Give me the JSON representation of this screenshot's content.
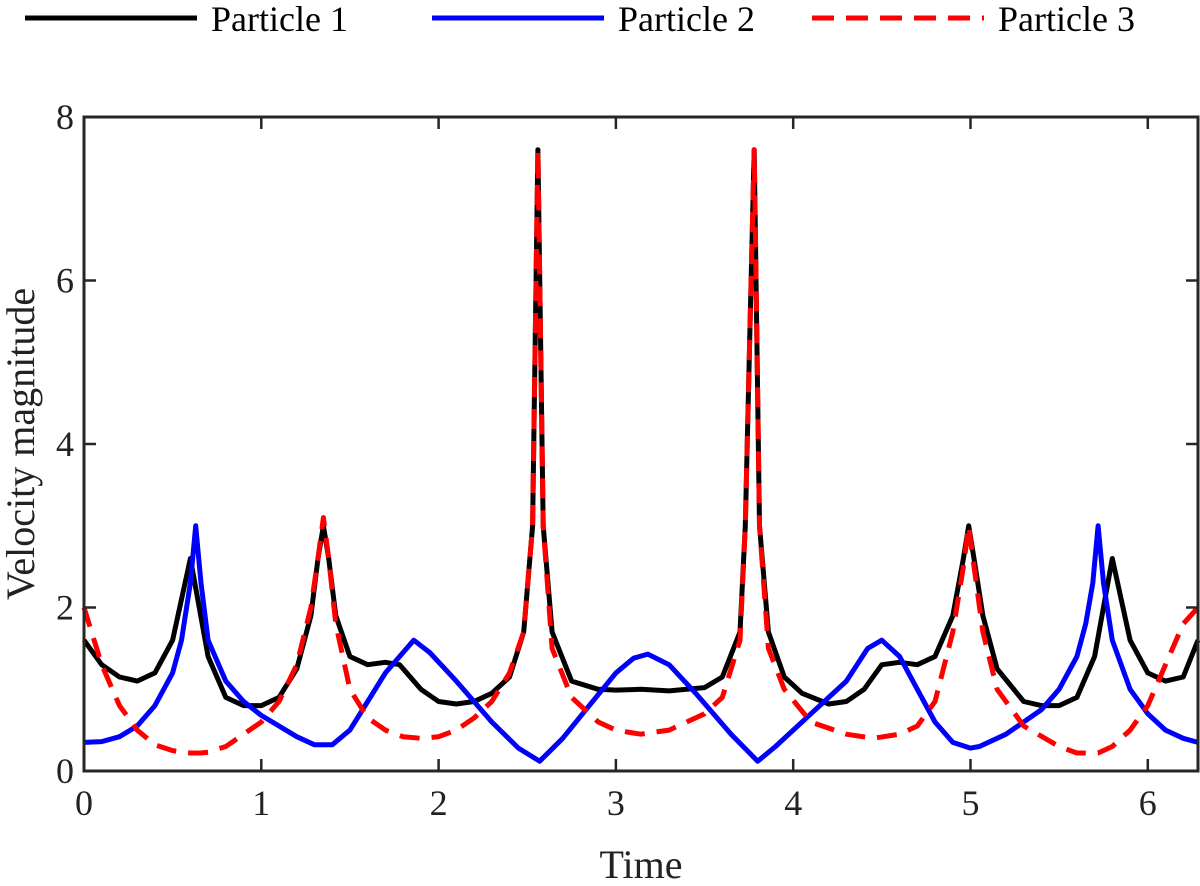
{
  "chart_data": {
    "type": "line",
    "title": "",
    "xlabel": "Time",
    "ylabel": "Velocity magnitude",
    "xlim": [
      0,
      6.2832
    ],
    "ylim": [
      0,
      8
    ],
    "xticks": [
      0,
      1,
      2,
      3,
      4,
      5,
      6
    ],
    "yticks": [
      0,
      2,
      4,
      6,
      8
    ],
    "grid": false,
    "legend_position": "top",
    "series": [
      {
        "name": "Particle 1",
        "color": "#000000",
        "style": "solid",
        "x": [
          0,
          0.1,
          0.2,
          0.3,
          0.4,
          0.5,
          0.6,
          0.7,
          0.8,
          0.9,
          1.0,
          1.1,
          1.2,
          1.28,
          1.32,
          1.35,
          1.38,
          1.42,
          1.5,
          1.6,
          1.7,
          1.78,
          1.9,
          2.0,
          2.1,
          2.2,
          2.3,
          2.4,
          2.48,
          2.53,
          2.56,
          2.59,
          2.64,
          2.75,
          2.9,
          3.0,
          3.14,
          3.3,
          3.5,
          3.6,
          3.7,
          3.73,
          3.78,
          3.81,
          3.86,
          3.95,
          4.05,
          4.2,
          4.3,
          4.4,
          4.5,
          4.6,
          4.7,
          4.8,
          4.9,
          4.96,
          4.99,
          5.02,
          5.07,
          5.15,
          5.3,
          5.4,
          5.5,
          5.6,
          5.7,
          5.8,
          5.9,
          6.0,
          6.1,
          6.2,
          6.2832
        ],
        "y": [
          1.6,
          1.3,
          1.15,
          1.1,
          1.2,
          1.6,
          2.6,
          1.4,
          0.9,
          0.8,
          0.8,
          0.9,
          1.25,
          1.9,
          2.6,
          3.0,
          2.6,
          1.9,
          1.4,
          1.3,
          1.33,
          1.3,
          1.0,
          0.85,
          0.82,
          0.85,
          0.95,
          1.15,
          1.7,
          3.0,
          7.6,
          3.0,
          1.7,
          1.1,
          1.0,
          0.99,
          1.0,
          0.98,
          1.02,
          1.15,
          1.7,
          3.0,
          7.6,
          3.0,
          1.7,
          1.15,
          0.95,
          0.82,
          0.85,
          1.0,
          1.3,
          1.33,
          1.3,
          1.4,
          1.9,
          2.6,
          3.0,
          2.6,
          1.9,
          1.25,
          0.85,
          0.8,
          0.8,
          0.9,
          1.4,
          2.6,
          1.6,
          1.2,
          1.1,
          1.15,
          1.6
        ]
      },
      {
        "name": "Particle 2",
        "color": "#0000ff",
        "style": "solid",
        "x": [
          0,
          0.1,
          0.2,
          0.3,
          0.4,
          0.5,
          0.55,
          0.6,
          0.63,
          0.66,
          0.7,
          0.8,
          0.9,
          1.0,
          1.1,
          1.2,
          1.3,
          1.4,
          1.5,
          1.6,
          1.7,
          1.8,
          1.86,
          1.95,
          2.1,
          2.3,
          2.45,
          2.57,
          2.7,
          2.85,
          3.0,
          3.1,
          3.18,
          3.3,
          3.45,
          3.65,
          3.8,
          3.9,
          4.1,
          4.3,
          4.42,
          4.5,
          4.6,
          4.7,
          4.8,
          4.9,
          5.0,
          5.05,
          5.2,
          5.4,
          5.5,
          5.6,
          5.65,
          5.69,
          5.72,
          5.75,
          5.8,
          5.9,
          6.0,
          6.1,
          6.2,
          6.2832
        ],
        "y": [
          0.35,
          0.36,
          0.42,
          0.55,
          0.8,
          1.2,
          1.6,
          2.3,
          3.0,
          2.3,
          1.6,
          1.1,
          0.85,
          0.68,
          0.55,
          0.42,
          0.32,
          0.32,
          0.5,
          0.85,
          1.2,
          1.45,
          1.6,
          1.45,
          1.1,
          0.6,
          0.28,
          0.12,
          0.4,
          0.8,
          1.2,
          1.38,
          1.43,
          1.3,
          0.95,
          0.45,
          0.12,
          0.3,
          0.7,
          1.1,
          1.5,
          1.6,
          1.4,
          1.0,
          0.6,
          0.35,
          0.28,
          0.3,
          0.45,
          0.75,
          1.0,
          1.4,
          1.8,
          2.3,
          3.0,
          2.3,
          1.6,
          1.0,
          0.7,
          0.5,
          0.4,
          0.35
        ]
      },
      {
        "name": "Particle 3",
        "color": "#ff0000",
        "style": "dashed",
        "x": [
          0,
          0.1,
          0.2,
          0.3,
          0.4,
          0.5,
          0.55,
          0.6,
          0.63,
          0.66,
          0.7,
          0.8,
          0.9,
          1.0,
          1.1,
          1.2,
          1.28,
          1.32,
          1.35,
          1.38,
          1.42,
          1.5,
          1.6,
          1.7,
          1.8,
          1.9,
          2.0,
          2.1,
          2.2,
          2.3,
          2.4,
          2.48,
          2.53,
          2.56,
          2.59,
          2.64,
          2.75,
          2.9,
          3.0,
          3.14,
          3.3,
          3.5,
          3.6,
          3.7,
          3.73,
          3.78,
          3.81,
          3.86,
          3.95,
          4.1,
          4.3,
          4.45,
          4.6,
          4.7,
          4.8,
          4.9,
          4.96,
          4.99,
          5.02,
          5.07,
          5.15,
          5.3,
          5.5,
          5.6,
          5.66,
          5.72,
          5.8,
          5.9,
          6.0,
          6.1,
          6.2,
          6.2832
        ],
        "y": [
          2.0,
          1.3,
          0.8,
          0.5,
          0.32,
          0.25,
          0.23,
          0.22,
          0.22,
          0.22,
          0.23,
          0.3,
          0.45,
          0.6,
          0.85,
          1.3,
          2.0,
          2.6,
          3.1,
          2.6,
          1.8,
          1.0,
          0.65,
          0.5,
          0.42,
          0.4,
          0.42,
          0.5,
          0.65,
          0.85,
          1.2,
          1.7,
          3.0,
          7.6,
          3.0,
          1.5,
          0.9,
          0.6,
          0.5,
          0.45,
          0.5,
          0.7,
          0.9,
          1.6,
          3.0,
          7.6,
          3.0,
          1.5,
          1.0,
          0.6,
          0.45,
          0.4,
          0.45,
          0.55,
          0.85,
          1.7,
          2.5,
          3.0,
          2.5,
          1.7,
          1.0,
          0.55,
          0.3,
          0.22,
          0.22,
          0.22,
          0.3,
          0.5,
          0.8,
          1.3,
          1.8,
          2.0
        ]
      }
    ]
  }
}
